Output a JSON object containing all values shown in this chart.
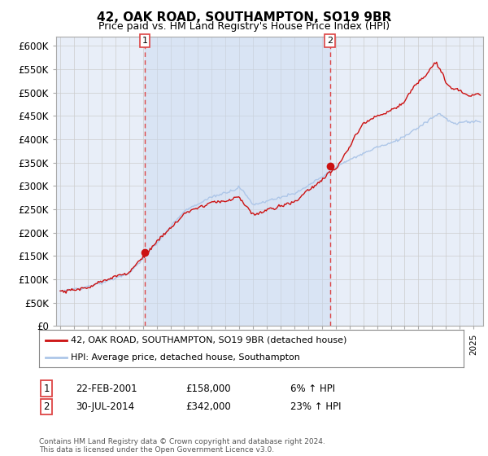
{
  "title": "42, OAK ROAD, SOUTHAMPTON, SO19 9BR",
  "subtitle": "Price paid vs. HM Land Registry's House Price Index (HPI)",
  "ylim": [
    0,
    620000
  ],
  "yticks": [
    0,
    50000,
    100000,
    150000,
    200000,
    250000,
    300000,
    350000,
    400000,
    450000,
    500000,
    550000,
    600000
  ],
  "ytick_labels": [
    "£0",
    "£50K",
    "£100K",
    "£150K",
    "£200K",
    "£250K",
    "£300K",
    "£350K",
    "£400K",
    "£450K",
    "£500K",
    "£550K",
    "£600K"
  ],
  "hpi_color": "#adc6e8",
  "price_color": "#cc1111",
  "vline_color": "#dd4444",
  "shade_color": "#ddeeff",
  "purchase_1_date": 2001.13,
  "purchase_1_price": 158000,
  "purchase_2_date": 2014.58,
  "purchase_2_price": 342000,
  "legend_label_1": "42, OAK ROAD, SOUTHAMPTON, SO19 9BR (detached house)",
  "legend_label_2": "HPI: Average price, detached house, Southampton",
  "table_entries": [
    {
      "num": "1",
      "date": "22-FEB-2001",
      "price": "£158,000",
      "hpi": "6% ↑ HPI"
    },
    {
      "num": "2",
      "date": "30-JUL-2014",
      "price": "£342,000",
      "hpi": "23% ↑ HPI"
    }
  ],
  "footer": "Contains HM Land Registry data © Crown copyright and database right 2024.\nThis data is licensed under the Open Government Licence v3.0.",
  "grid_color": "#cccccc",
  "plot_bg": "#e8eef8",
  "shade_alpha": 0.45
}
